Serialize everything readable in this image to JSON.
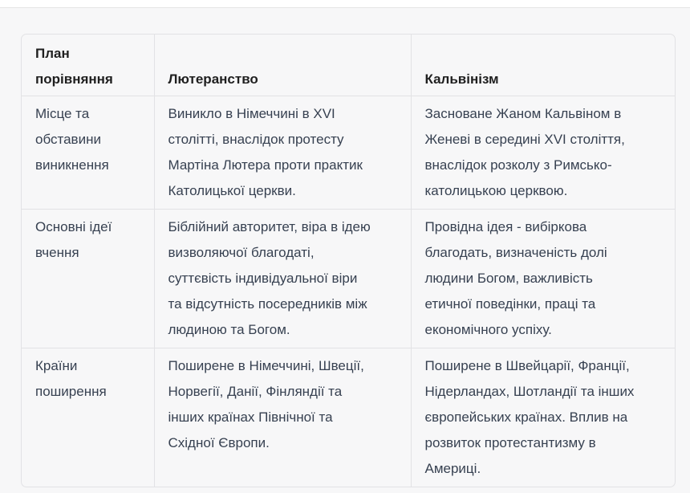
{
  "table": {
    "headers": [
      [
        "План",
        "порівняння"
      ],
      [
        "Лютеранство"
      ],
      [
        "Кальвінізм"
      ]
    ],
    "rows": [
      [
        [
          "Місце та",
          "обставини",
          "виникнення"
        ],
        [
          "Виникло в Німеччині в XVI",
          "столітті, внаслідок протесту",
          "Мартіна Лютера проти практик",
          "Католицької церкви."
        ],
        [
          "Засноване Жаном Кальвіном в",
          "Женеві в середині XVI століття,",
          "внаслідок розколу з Римсько-",
          "католицькою церквою."
        ]
      ],
      [
        [
          "Основні ідеї",
          "вчення"
        ],
        [
          "Біблійний авторитет, віра в ідею",
          "визволяючої благодаті,",
          "суттєвість індивідуальної віри",
          "та відсутність посередників між",
          "людиною та Богом."
        ],
        [
          "Провідна ідея - вибіркова",
          "благодать, визначеність долі",
          "людини Богом, важливість",
          "етичної поведінки, праці та",
          "економічного успіху."
        ]
      ],
      [
        [
          "Країни",
          "поширення"
        ],
        [
          "Поширене в Німеччині, Швеції,",
          "Норвегії, Данії, Фінляндії та",
          "інших країнах Північної та",
          "Східної Європи."
        ],
        [
          "Поширене в Швейцарії, Франції,",
          "Нідерландах, Шотландії та інших",
          "європейських країнах. Вплив на",
          "розвиток протестантизму в",
          "Америці."
        ]
      ]
    ]
  }
}
